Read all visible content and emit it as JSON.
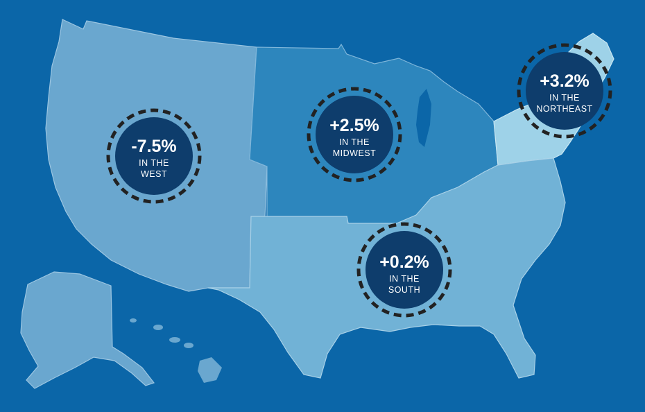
{
  "colors": {
    "background": "#0b66a8",
    "west": "#6aa7cf",
    "midwest": "#2d86bd",
    "south": "#71b2d6",
    "northeast": "#9ed2e8",
    "badge_fill": "#0e3d6c",
    "badge_dash": "#222222"
  },
  "regions": {
    "west": {
      "value": "-7.5%",
      "line1": "IN THE",
      "line2": "WEST"
    },
    "midwest": {
      "value": "+2.5%",
      "line1": "IN THE",
      "line2": "MIDWEST"
    },
    "northeast": {
      "value": "+3.2%",
      "line1": "IN THE",
      "line2": "NORTHEAST"
    },
    "south": {
      "value": "+0.2%",
      "line1": "IN THE",
      "line2": "SOUTH"
    }
  }
}
